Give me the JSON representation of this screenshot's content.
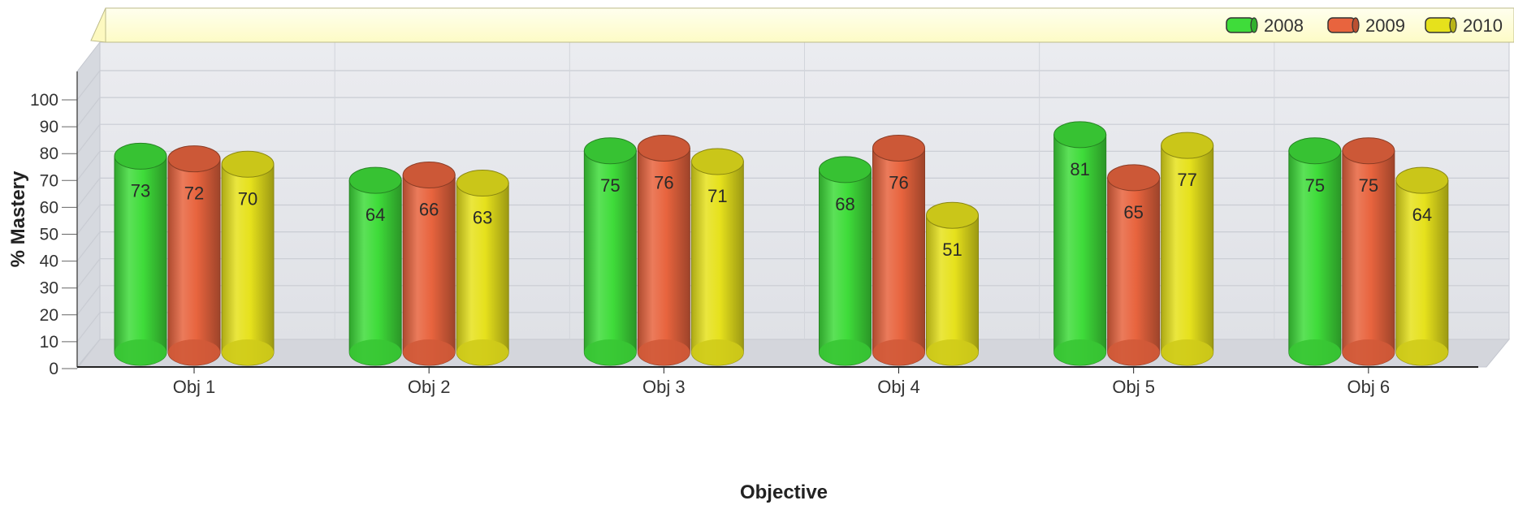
{
  "chart_data": {
    "type": "bar",
    "style": "3d-cylinder",
    "categories": [
      "Obj 1",
      "Obj 2",
      "Obj 3",
      "Obj 4",
      "Obj 5",
      "Obj 6"
    ],
    "series": [
      {
        "name": "2008",
        "values": [
          73,
          64,
          75,
          68,
          81,
          75
        ],
        "color": "#3fdc3a"
      },
      {
        "name": "2009",
        "values": [
          72,
          66,
          76,
          76,
          65,
          75
        ],
        "color": "#e8643e"
      },
      {
        "name": "2010",
        "values": [
          70,
          63,
          71,
          51,
          77,
          64
        ],
        "color": "#e6e11c"
      }
    ],
    "xlabel": "Objective",
    "ylabel": "% Mastery",
    "ylim": [
      0,
      100
    ],
    "yticks": [
      0,
      10,
      20,
      30,
      40,
      50,
      60,
      70,
      80,
      90,
      100
    ],
    "grid": true,
    "legend_position": "top-right",
    "data_labels": true
  }
}
